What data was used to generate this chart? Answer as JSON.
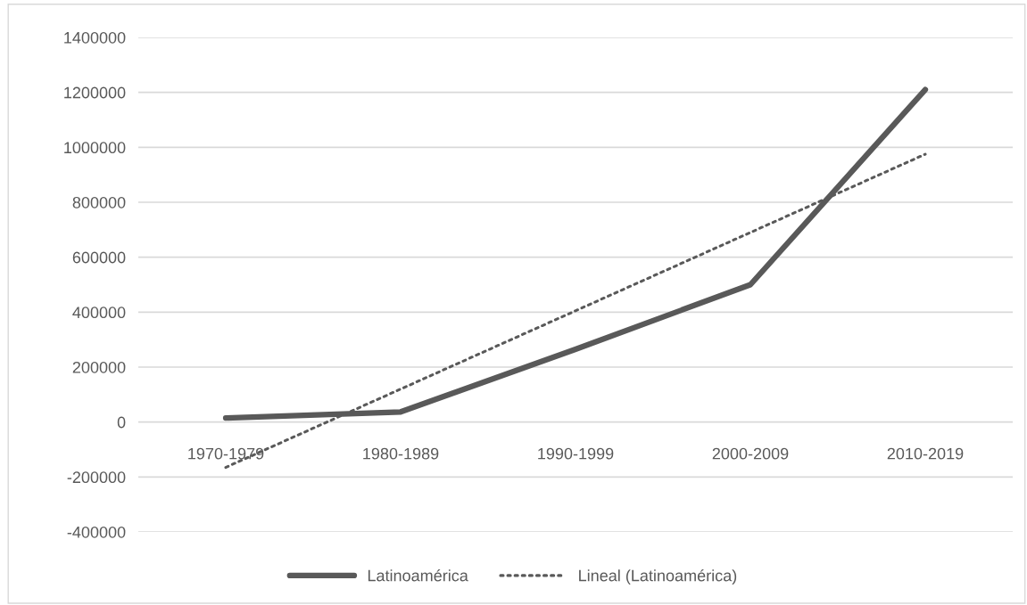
{
  "chart_data": {
    "type": "line",
    "categories": [
      "1970-1979",
      "1980-1989",
      "1990-1999",
      "2000-2009",
      "2010-2019"
    ],
    "series": [
      {
        "name": "Latinoamérica",
        "color": "#595959",
        "values": [
          15000,
          37000,
          265000,
          500000,
          1210000
        ],
        "line_style": "solid"
      },
      {
        "name": "Lineal (Latinoamérica)",
        "color": "#595959",
        "values": [
          -165000,
          120000,
          405000,
          690000,
          975000
        ],
        "line_style": "dotted"
      }
    ],
    "ylim": [
      -400000,
      1400000
    ],
    "yticks": [
      -400000,
      -200000,
      0,
      200000,
      400000,
      600000,
      800000,
      1000000,
      1200000,
      1400000
    ],
    "grid": "y",
    "legend": "bottom",
    "marker": "none"
  }
}
